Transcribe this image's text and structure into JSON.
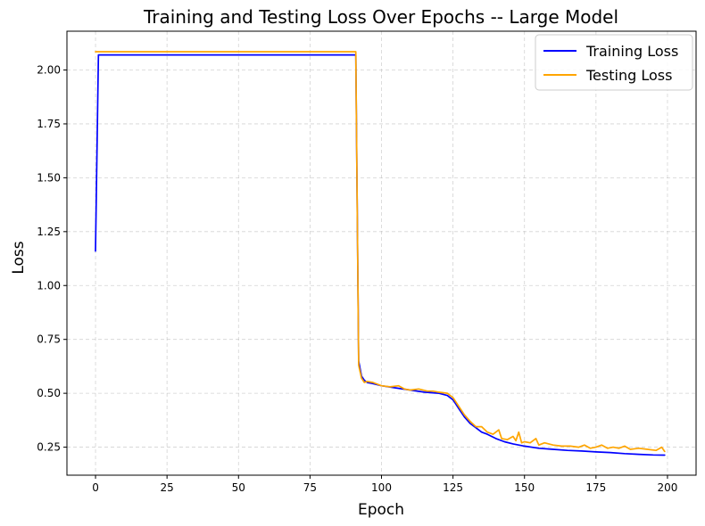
{
  "chart_data": {
    "type": "line",
    "title": "Training and Testing Loss Over Epochs -- Large Model",
    "xlabel": "Epoch",
    "ylabel": "Loss",
    "xlim": [
      -10,
      210
    ],
    "ylim": [
      0.12,
      2.18
    ],
    "xticks": [
      0,
      25,
      50,
      75,
      100,
      125,
      150,
      175,
      200
    ],
    "yticks": [
      0.25,
      0.5,
      0.75,
      1.0,
      1.25,
      1.5,
      1.75,
      2.0
    ],
    "grid": true,
    "legend_position": "top-right",
    "series": [
      {
        "name": "Training Loss",
        "color": "#0000ff",
        "x": [
          0,
          1,
          2,
          10,
          20,
          30,
          40,
          50,
          60,
          70,
          80,
          90,
          91,
          92,
          93,
          94,
          95,
          97,
          100,
          105,
          110,
          115,
          120,
          123,
          125,
          127,
          129,
          131,
          133,
          135,
          137,
          140,
          143,
          146,
          150,
          155,
          160,
          165,
          170,
          175,
          180,
          185,
          190,
          195,
          199
        ],
        "values": [
          1.16,
          2.07,
          2.07,
          2.07,
          2.07,
          2.07,
          2.07,
          2.07,
          2.07,
          2.07,
          2.07,
          2.07,
          2.07,
          0.65,
          0.58,
          0.56,
          0.55,
          0.545,
          0.535,
          0.525,
          0.515,
          0.505,
          0.5,
          0.49,
          0.47,
          0.43,
          0.39,
          0.36,
          0.34,
          0.32,
          0.31,
          0.29,
          0.275,
          0.265,
          0.255,
          0.245,
          0.24,
          0.235,
          0.232,
          0.228,
          0.225,
          0.22,
          0.217,
          0.214,
          0.213
        ]
      },
      {
        "name": "Testing Loss",
        "color": "#ffa500",
        "x": [
          0,
          10,
          20,
          30,
          40,
          50,
          60,
          70,
          80,
          90,
          91,
          92,
          93,
          94,
          95,
          97,
          100,
          103,
          106,
          108,
          110,
          113,
          116,
          118,
          120,
          123,
          125,
          127,
          129,
          131,
          133,
          135,
          137,
          139,
          141,
          142,
          144,
          146,
          147,
          148,
          149,
          150,
          152,
          154,
          155,
          157,
          160,
          163,
          166,
          169,
          171,
          173,
          175,
          177,
          179,
          181,
          183,
          185,
          187,
          190,
          193,
          196,
          198,
          199
        ],
        "values": [
          2.085,
          2.085,
          2.085,
          2.085,
          2.085,
          2.085,
          2.085,
          2.085,
          2.085,
          2.085,
          2.085,
          0.63,
          0.57,
          0.55,
          0.555,
          0.55,
          0.535,
          0.53,
          0.535,
          0.52,
          0.515,
          0.52,
          0.51,
          0.51,
          0.505,
          0.5,
          0.48,
          0.44,
          0.4,
          0.37,
          0.345,
          0.345,
          0.32,
          0.31,
          0.33,
          0.29,
          0.285,
          0.3,
          0.28,
          0.32,
          0.27,
          0.275,
          0.27,
          0.29,
          0.26,
          0.27,
          0.26,
          0.255,
          0.255,
          0.25,
          0.26,
          0.245,
          0.25,
          0.26,
          0.245,
          0.25,
          0.245,
          0.255,
          0.24,
          0.245,
          0.24,
          0.235,
          0.25,
          0.23
        ]
      }
    ]
  }
}
